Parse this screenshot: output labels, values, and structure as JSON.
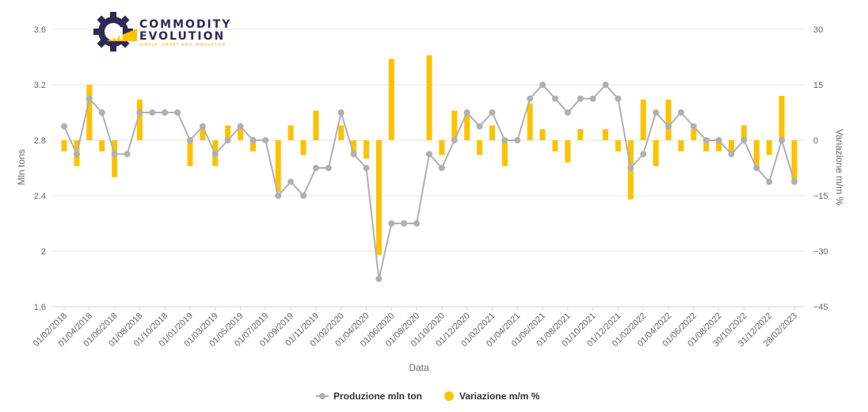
{
  "logo": {
    "line1": "COMMODITY",
    "line2": "EVOLUTION",
    "tagline": "SIMPLY, SMART AND INNOVATIVE"
  },
  "chart_data": {
    "type": "bar+line",
    "xlabel": "Data",
    "ylabel_left": "Mln tons",
    "ylabel_right": "Variazione m/m %",
    "ylim_left": [
      1.6,
      3.6
    ],
    "ylim_right": [
      -45,
      30
    ],
    "left_ticks": [
      "1.6",
      "2",
      "2.4",
      "2.8",
      "3.2",
      "3.6"
    ],
    "right_ticks": [
      "−45",
      "−30",
      "−15",
      "0",
      "15",
      "30"
    ],
    "grid": true,
    "legend_position": "bottom-center",
    "colors": {
      "line": "#b0afb4",
      "bar": "#fcc200",
      "grid": "#e6e6e6"
    },
    "series": [
      {
        "name": "Produzione mln ton",
        "kind": "line",
        "values": [
          2.9,
          2.7,
          3.1,
          3.0,
          2.7,
          2.7,
          3.0,
          3.0,
          3.0,
          3.0,
          2.8,
          2.9,
          2.7,
          2.8,
          2.9,
          2.8,
          2.8,
          2.4,
          2.5,
          2.4,
          2.6,
          2.6,
          3.0,
          2.7,
          2.6,
          1.8,
          2.2,
          2.2,
          2.2,
          2.7,
          2.6,
          2.8,
          3.0,
          2.9,
          3.0,
          2.8,
          2.8,
          3.1,
          3.2,
          3.1,
          3.0,
          3.1,
          3.1,
          3.2,
          3.1,
          2.6,
          2.7,
          3.0,
          2.9,
          3.0,
          2.9,
          2.8,
          2.8,
          2.7,
          2.8,
          2.6,
          2.5,
          2.8,
          2.5
        ]
      },
      {
        "name": "Variazione m/m %",
        "kind": "bar",
        "values": [
          -3,
          -7,
          15,
          -3,
          -10,
          0,
          11,
          0,
          0,
          0,
          -7,
          4,
          -7,
          4,
          4,
          -3,
          0,
          -14,
          4,
          -4,
          8,
          0,
          4,
          -4,
          -5,
          -31,
          22,
          0,
          0,
          23,
          -4,
          8,
          7,
          -4,
          4,
          -7,
          0,
          10,
          3,
          -3,
          -6,
          3,
          0,
          3,
          -3,
          -16,
          11,
          -7,
          11,
          -3,
          3,
          -3,
          -3,
          -3,
          4,
          -7,
          -4,
          12,
          -11
        ]
      }
    ],
    "x_tick_labels": [
      "01/02/2018",
      "01/04/2018",
      "01/06/2018",
      "01/08/2018",
      "01/10/2018",
      "01/01/2019",
      "01/03/2019",
      "01/05/2019",
      "01/07/2019",
      "01/09/2019",
      "01/11/2019",
      "01/02/2020",
      "01/04/2020",
      "01/06/2020",
      "01/08/2020",
      "01/10/2020",
      "01/12/2020",
      "01/02/2021",
      "01/04/2021",
      "01/06/2021",
      "01/08/2021",
      "01/10/2021",
      "01/12/2021",
      "01/02/2022",
      "01/04/2022",
      "01/06/2022",
      "01/08/2022",
      "30/10/2022",
      "31/12/2022",
      "28/02/2023"
    ]
  }
}
